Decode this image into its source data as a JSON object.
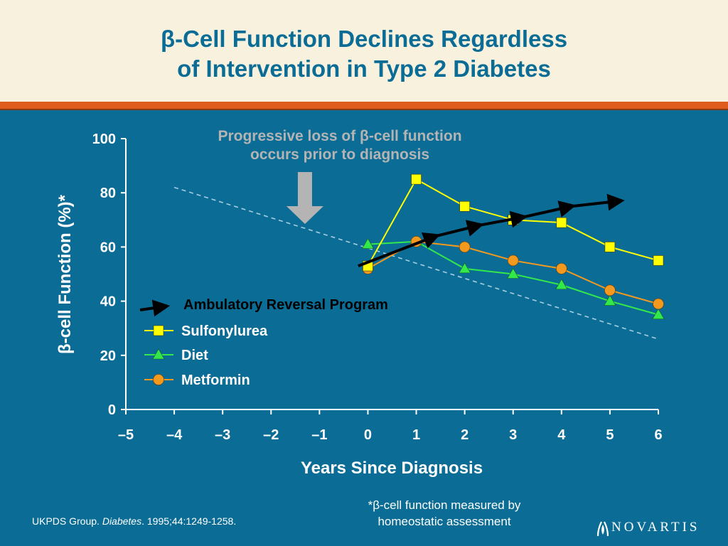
{
  "slide": {
    "title_lines": [
      "β-Cell Function Declines Regardless",
      "of Intervention in Type 2 Diabetes"
    ],
    "footnote_lines": [
      "*β-cell function measured by",
      "homeostatic assessment"
    ],
    "citation": {
      "prefix": "UKPDS Group. ",
      "journal": "Diabetes",
      "suffix": ". 1995;44:1249-1258."
    },
    "logo_text": "NOVARTIS"
  },
  "colors": {
    "background": "#0b6d96",
    "header_bg": "#f8f1dd",
    "header_bar": "#e05b1e",
    "title": "#0b6d96",
    "sulfonylurea": "#ffff00",
    "diet": "#33e84a",
    "metformin": "#f39a1e",
    "arrow_black": "#000000",
    "down_arrow": "#b4b4b4",
    "dashed_line": "#a7cde0"
  },
  "chart_data": {
    "type": "line",
    "xlabel": "Years Since Diagnosis",
    "ylabel": "β-cell Function (%)*",
    "xlim": [
      -5,
      6
    ],
    "ylim": [
      0,
      100
    ],
    "xticks": [
      -5,
      -4,
      -3,
      -2,
      -1,
      0,
      1,
      2,
      3,
      4,
      5,
      6
    ],
    "xtick_labels": [
      "–5",
      "–4",
      "–3",
      "–2",
      "–1",
      "0",
      "1",
      "2",
      "3",
      "4",
      "5",
      "6"
    ],
    "yticks": [
      0,
      20,
      40,
      60,
      80,
      100
    ],
    "ytick_labels": [
      "0",
      "20",
      "40",
      "60",
      "80",
      "100"
    ],
    "grid": false,
    "legend_position": "lower-left",
    "series": [
      {
        "name": "Sulfonylurea",
        "marker": "square",
        "color": "#ffff00",
        "x": [
          0,
          1,
          2,
          3,
          4,
          5,
          6
        ],
        "y": [
          53,
          85,
          75,
          70,
          69,
          60,
          55
        ]
      },
      {
        "name": "Diet",
        "marker": "triangle",
        "color": "#33e84a",
        "x": [
          0,
          1,
          2,
          3,
          4,
          5,
          6
        ],
        "y": [
          61,
          62,
          52,
          50,
          46,
          40,
          35
        ]
      },
      {
        "name": "Metformin",
        "marker": "circle",
        "color": "#f39a1e",
        "x": [
          0,
          1,
          2,
          3,
          4,
          5,
          6
        ],
        "y": [
          52,
          62,
          60,
          55,
          52,
          44,
          39
        ]
      }
    ],
    "extrapolation_line": {
      "x": [
        -4,
        6
      ],
      "y": [
        82,
        26
      ]
    },
    "annotation": {
      "lines": [
        "Progressive loss of β-cell function",
        "occurs prior to diagnosis"
      ],
      "arrow_x": -1.3,
      "color": "#b4b4b4"
    },
    "overlay": {
      "label": "Ambulatory Reversal Program",
      "points": [
        {
          "x": -0.2,
          "y": 53
        },
        {
          "x": 1.4,
          "y": 64
        },
        {
          "x": 2.3,
          "y": 68
        },
        {
          "x": 3.2,
          "y": 71
        },
        {
          "x": 4.2,
          "y": 75
        },
        {
          "x": 5.2,
          "y": 77
        }
      ]
    }
  }
}
